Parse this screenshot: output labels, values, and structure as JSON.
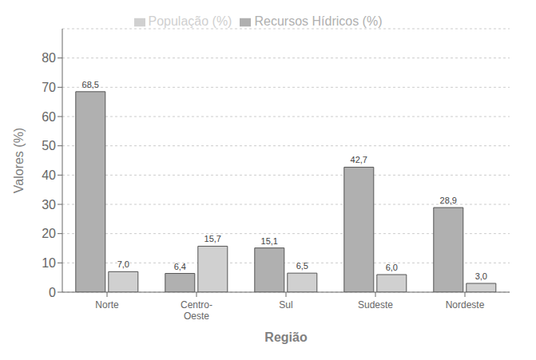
{
  "chart_data": {
    "type": "bar",
    "categories": [
      "Norte",
      "Centro-\nOeste",
      "Sul",
      "Sudeste",
      "Nordeste"
    ],
    "series": [
      {
        "name": "Recursos Hídricos (%)",
        "color": "#b0b0b0",
        "values": [
          68.5,
          6.4,
          15.1,
          42.7,
          28.9
        ],
        "value_labels": [
          "68,5",
          "6,4",
          "15,1",
          "42,7",
          "28,9"
        ]
      },
      {
        "name": "População (%)",
        "color": "#d0d0d0",
        "values": [
          7.0,
          15.7,
          6.5,
          6.0,
          3.0
        ],
        "value_labels": [
          "7,0",
          "15,7",
          "6,5",
          "6,0",
          "3,0"
        ]
      }
    ],
    "xlabel": "Região",
    "ylabel": "Valores (%)",
    "ylim": [
      0,
      90
    ],
    "yticks": [
      0,
      10,
      20,
      30,
      40,
      50,
      60,
      70,
      80
    ],
    "grid": true,
    "legend": "top",
    "data_labels": true
  }
}
